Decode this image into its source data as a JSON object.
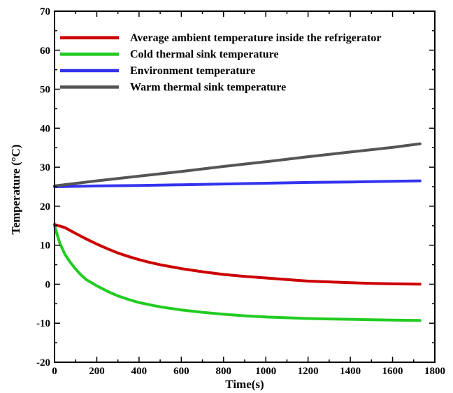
{
  "chart_data": {
    "type": "line",
    "xlabel": "Time(s)",
    "ylabel": "Temperature (°C)",
    "xlim": [
      0,
      1800
    ],
    "ylim": [
      -20,
      70
    ],
    "xticks": [
      "0",
      "200",
      "400",
      "600",
      "800",
      "1000",
      "1200",
      "1400",
      "1600",
      "1800"
    ],
    "yticks": [
      "-20",
      "-10",
      "0",
      "10",
      "20",
      "30",
      "40",
      "50",
      "60",
      "70"
    ],
    "grid": false,
    "legend_position": "top",
    "series": [
      {
        "name": "Average ambient temperature inside the refrigerator",
        "color": "#cc0000",
        "x": [
          0,
          50,
          100,
          150,
          200,
          250,
          300,
          350,
          400,
          450,
          500,
          600,
          700,
          800,
          900,
          1000,
          1100,
          1200,
          1300,
          1400,
          1500,
          1600,
          1730
        ],
        "y": [
          15.3,
          14.5,
          13.0,
          11.6,
          10.3,
          9.1,
          8.0,
          7.1,
          6.3,
          5.6,
          5.0,
          4.0,
          3.2,
          2.5,
          2.0,
          1.6,
          1.2,
          0.8,
          0.6,
          0.4,
          0.2,
          0.1,
          0.0
        ]
      },
      {
        "name": "Cold thermal sink temperature",
        "color": "#22cc22",
        "x": [
          0,
          25,
          50,
          75,
          100,
          125,
          150,
          200,
          250,
          300,
          350,
          400,
          500,
          600,
          700,
          800,
          900,
          1000,
          1100,
          1200,
          1300,
          1400,
          1500,
          1600,
          1730
        ],
        "y": [
          15.0,
          10.5,
          7.6,
          5.6,
          3.9,
          2.4,
          1.2,
          -0.4,
          -1.8,
          -3.0,
          -3.9,
          -4.7,
          -5.8,
          -6.6,
          -7.2,
          -7.7,
          -8.1,
          -8.4,
          -8.6,
          -8.8,
          -8.9,
          -9.0,
          -9.1,
          -9.2,
          -9.3
        ]
      },
      {
        "name": "Environment temperature",
        "color": "#3333ee",
        "x": [
          0,
          200,
          400,
          600,
          800,
          1000,
          1200,
          1400,
          1600,
          1730
        ],
        "y": [
          25.0,
          25.2,
          25.3,
          25.5,
          25.7,
          25.9,
          26.1,
          26.2,
          26.4,
          26.5
        ]
      },
      {
        "name": "Warm thermal sink temperature",
        "color": "#555555",
        "x": [
          0,
          200,
          400,
          600,
          800,
          1000,
          1200,
          1400,
          1600,
          1730
        ],
        "y": [
          25.2,
          26.5,
          27.7,
          28.9,
          30.2,
          31.4,
          32.7,
          33.9,
          35.1,
          36.0
        ]
      }
    ]
  }
}
